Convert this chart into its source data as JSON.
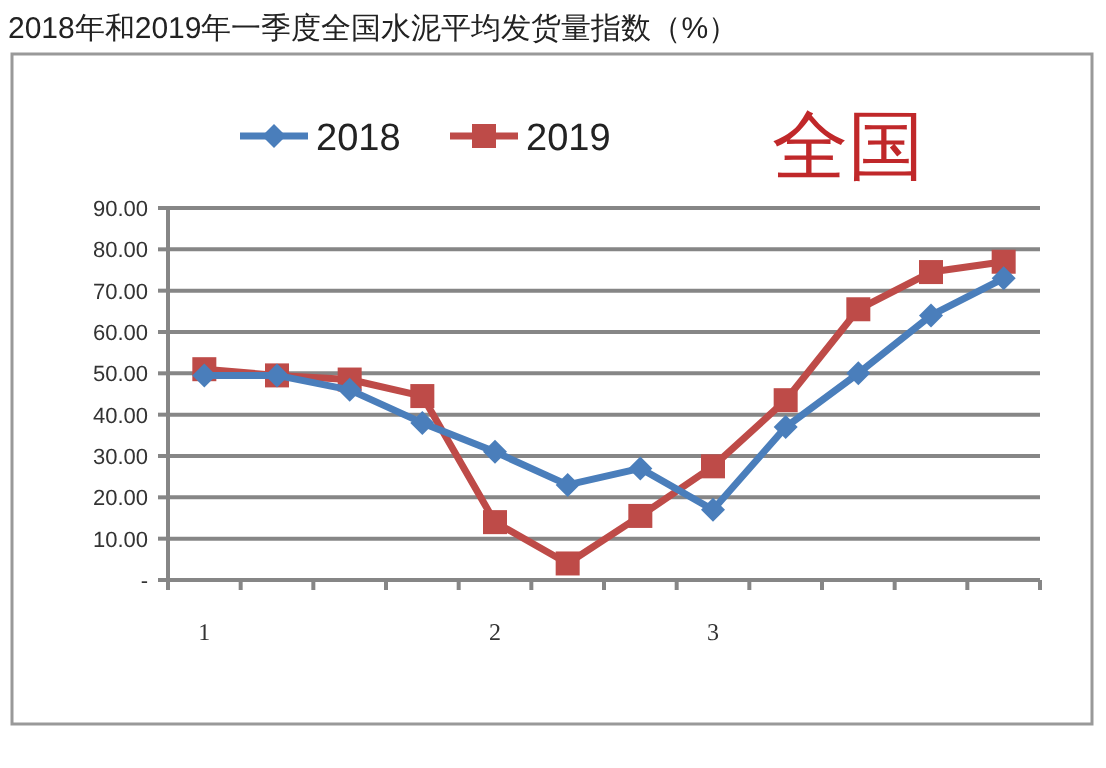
{
  "chart_data": {
    "type": "line",
    "title": "2018年和2019年一季度全国水泥平均发货量指数（%）",
    "annotations": [
      "全国"
    ],
    "categories": [
      "1",
      null,
      null,
      null,
      "2",
      null,
      null,
      "3",
      null,
      null,
      null,
      null
    ],
    "series": [
      {
        "name": "2018",
        "color": "#4a7ebb",
        "marker": "diamond",
        "values": [
          49.5,
          49.5,
          46,
          38,
          31,
          23,
          27,
          17,
          37,
          50,
          64,
          73
        ]
      },
      {
        "name": "2019",
        "color": "#be4b48",
        "marker": "square",
        "values": [
          51,
          49.5,
          48.5,
          44.5,
          14,
          4,
          15.5,
          27.5,
          43.5,
          65.5,
          74.5,
          77
        ]
      }
    ],
    "ylim": [
      0,
      90
    ],
    "yticks": [
      {
        "value": 0,
        "label": "-"
      },
      {
        "value": 10,
        "label": "10.00"
      },
      {
        "value": 20,
        "label": "20.00"
      },
      {
        "value": 30,
        "label": "30.00"
      },
      {
        "value": 40,
        "label": "40.00"
      },
      {
        "value": 50,
        "label": "50.00"
      },
      {
        "value": 60,
        "label": "60.00"
      },
      {
        "value": 70,
        "label": "70.00"
      },
      {
        "value": 80,
        "label": "80.00"
      },
      {
        "value": 90,
        "label": "90.00"
      }
    ],
    "grid": "y",
    "legend": "top",
    "line_style": "solid"
  }
}
